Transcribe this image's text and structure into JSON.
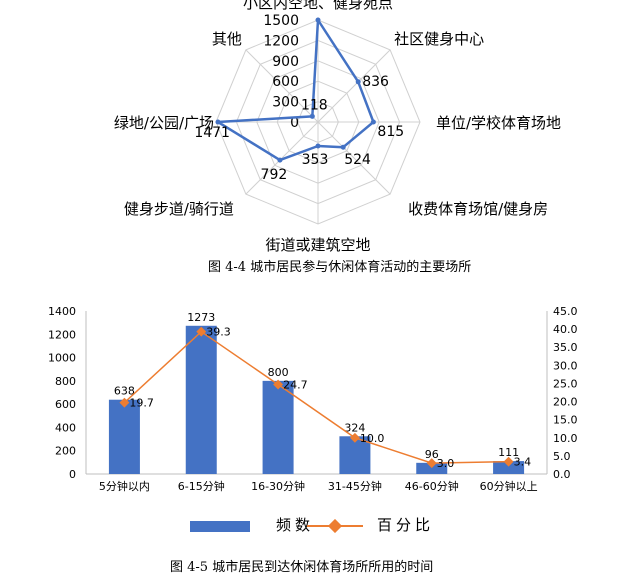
{
  "chart_data": [
    {
      "type": "radar",
      "categories": [
        "小区内空地、健身苑点",
        "社区健身中心",
        "单位/学校体育场地",
        "收费体育场馆/健身房",
        "街道或建筑空地",
        "健身步道/骑行道",
        "绿地/公园/广场",
        "其他"
      ],
      "values": [
        1500,
        836,
        815,
        524,
        353,
        792,
        1471,
        118
      ],
      "value_labels": [
        "",
        "836",
        "815",
        "524",
        "353",
        "792",
        "1471",
        "118"
      ],
      "radial_ticks": [
        "0",
        "300",
        "600",
        "900",
        "1200",
        "1500"
      ],
      "rmax": 1500,
      "color": "#4472C4",
      "caption": "图 4-4 城市居民参与休闲体育活动的主要场所"
    },
    {
      "type": "bar+line",
      "categories": [
        "5分钟以内",
        "6-15分钟",
        "16-30分钟",
        "31-45分钟",
        "46-60分钟",
        "60分钟以上"
      ],
      "series": [
        {
          "name": "频数",
          "type": "bar",
          "axis": "left",
          "values": [
            638,
            1273,
            800,
            324,
            96,
            111
          ],
          "labels": [
            "638",
            "1273",
            "800",
            "324",
            "96",
            "111"
          ],
          "color": "#4472C4"
        },
        {
          "name": "百分比",
          "type": "line",
          "axis": "right",
          "values": [
            19.7,
            39.3,
            24.7,
            10.0,
            3.0,
            3.4
          ],
          "labels": [
            "19.7",
            "39.3",
            "24.7",
            "10.0",
            "3.0",
            "3.4"
          ],
          "color": "#ED7D31"
        }
      ],
      "y_left": {
        "min": 0,
        "max": 1400,
        "step": 200,
        "ticks": [
          "0",
          "200",
          "400",
          "600",
          "800",
          "1000",
          "1200",
          "1400"
        ]
      },
      "y_right": {
        "min": 0,
        "max": 45,
        "step": 5,
        "ticks": [
          "0.0",
          "5.0",
          "10.0",
          "15.0",
          "20.0",
          "25.0",
          "30.0",
          "35.0",
          "40.0",
          "45.0"
        ]
      },
      "legend_position": "bottom",
      "caption": "图 4-5 城市居民到达休闲体育场所所用的时间"
    }
  ]
}
